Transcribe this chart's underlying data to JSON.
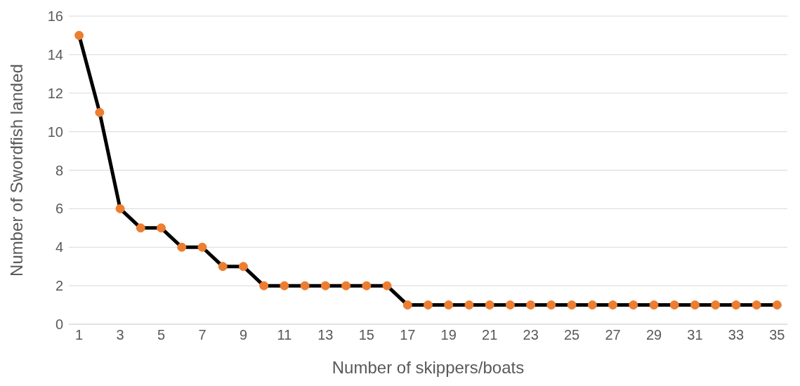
{
  "chart_data": {
    "type": "line",
    "xlabel": "Number of skippers/boats",
    "ylabel": "Number of Swordfish landed",
    "x": [
      1,
      2,
      3,
      4,
      5,
      6,
      7,
      8,
      9,
      10,
      11,
      12,
      13,
      14,
      15,
      16,
      17,
      18,
      19,
      20,
      21,
      22,
      23,
      24,
      25,
      26,
      27,
      28,
      29,
      30,
      31,
      32,
      33,
      34,
      35
    ],
    "series": [
      {
        "color": "#000000",
        "colors": [
          "#ed7d31",
          "#ed7d31",
          "#ed7d31",
          "#ed7d31",
          "#ed7d31",
          "#ed7d31",
          "#ed7d31",
          "#ed7d31",
          "#ed7d31",
          "#ed7d31",
          "#ed7d31",
          "#ed7d31",
          "#ed7d31",
          "#ed7d31",
          "#ed7d31",
          "#ed7d31",
          "#ed7d31",
          "#ed7d31",
          "#ed7d31",
          "#ed7d31",
          "#ed7d31",
          "#ed7d31",
          "#ed7d31",
          "#ed7d31",
          "#ed7d31",
          "#ed7d31",
          "#ed7d31",
          "#ed7d31",
          "#ed7d31",
          "#ed7d31",
          "#ed7d31",
          "#ed7d31",
          "#ed7d31",
          "#ed7d31",
          "#ed7d31"
        ],
        "values": [
          15,
          11,
          6,
          5,
          5,
          4,
          4,
          3,
          3,
          2,
          2,
          2,
          2,
          2,
          2,
          2,
          1,
          1,
          1,
          1,
          1,
          1,
          1,
          1,
          1,
          1,
          1,
          1,
          1,
          1,
          1,
          1,
          1,
          1,
          1
        ]
      }
    ],
    "xlim": [
      0.5,
      35.5
    ],
    "xticks": [
      1,
      3,
      5,
      7,
      9,
      11,
      13,
      15,
      17,
      19,
      21,
      23,
      25,
      27,
      29,
      31,
      33,
      35
    ],
    "ylim": [
      0,
      16
    ],
    "yticks": [
      0,
      2,
      4,
      6,
      8,
      10,
      12,
      14,
      16
    ],
    "grid": "y",
    "marker": "circle",
    "line_style": "solid"
  }
}
